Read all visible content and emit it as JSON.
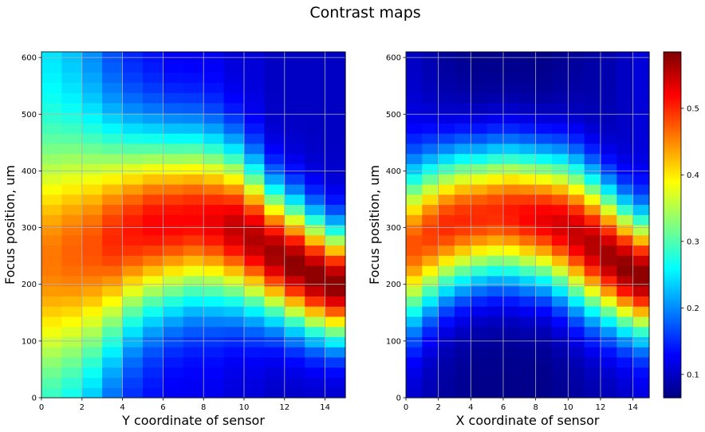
{
  "title": "Contrast maps",
  "colorbar": {
    "colormap": "jet",
    "range": [
      0.065,
      0.585
    ],
    "ticks": [
      "0.1",
      "0.2",
      "0.3",
      "0.4",
      "0.5"
    ],
    "tick_values": [
      0.1,
      0.2,
      0.3,
      0.4,
      0.5
    ]
  },
  "chart_data": [
    {
      "type": "heatmap",
      "xlabel": "Y coordinate of sensor",
      "ylabel": "Focus position, um",
      "xlim": [
        0,
        15
      ],
      "ylim": [
        0,
        610
      ],
      "xticks": [
        "0",
        "2",
        "4",
        "6",
        "8",
        "10",
        "12",
        "14"
      ],
      "yticks": [
        "0",
        "100",
        "200",
        "300",
        "400",
        "500",
        "600"
      ],
      "grid": true,
      "model": {
        "description_of_values": "contrast per (sensor column, focus position) cell",
        "x_bins": 15,
        "y_bins": 34,
        "peak_focus_um_by_column": [
          245,
          255,
          265,
          280,
          295,
          305,
          310,
          315,
          310,
          300,
          280,
          255,
          235,
          215,
          200
        ],
        "peak_contrast_by_column": [
          0.46,
          0.47,
          0.48,
          0.5,
          0.51,
          0.52,
          0.52,
          0.52,
          0.53,
          0.55,
          0.56,
          0.57,
          0.58,
          0.58,
          0.58
        ],
        "width_um_by_column": [
          195,
          195,
          190,
          175,
          160,
          150,
          145,
          140,
          135,
          130,
          120,
          110,
          105,
          100,
          95
        ],
        "baseline_by_column": [
          0.24,
          0.22,
          0.19,
          0.16,
          0.14,
          0.13,
          0.12,
          0.12,
          0.12,
          0.11,
          0.11,
          0.1,
          0.1,
          0.1,
          0.1
        ]
      }
    },
    {
      "type": "heatmap",
      "xlabel": "X coordinate of sensor",
      "ylabel": "Focus position, um",
      "xlim": [
        0,
        15
      ],
      "ylim": [
        0,
        610
      ],
      "xticks": [
        "0",
        "2",
        "4",
        "6",
        "8",
        "10",
        "12",
        "14"
      ],
      "yticks": [
        "0",
        "100",
        "200",
        "300",
        "400",
        "500",
        "600"
      ],
      "grid": true,
      "model": {
        "description_of_values": "contrast per (sensor column, focus position) cell",
        "x_bins": 15,
        "y_bins": 34,
        "peak_focus_um_by_column": [
          270,
          290,
          305,
          315,
          320,
          325,
          325,
          320,
          315,
          305,
          290,
          270,
          250,
          230,
          215
        ],
        "peak_contrast_by_column": [
          0.48,
          0.49,
          0.5,
          0.5,
          0.5,
          0.5,
          0.51,
          0.52,
          0.53,
          0.54,
          0.55,
          0.56,
          0.57,
          0.58,
          0.58
        ],
        "width_um_by_column": [
          130,
          125,
          120,
          118,
          115,
          115,
          115,
          115,
          115,
          118,
          120,
          118,
          112,
          105,
          100
        ],
        "baseline_by_column": [
          0.1,
          0.09,
          0.08,
          0.075,
          0.07,
          0.07,
          0.07,
          0.07,
          0.07,
          0.075,
          0.08,
          0.085,
          0.09,
          0.1,
          0.11
        ]
      }
    }
  ]
}
